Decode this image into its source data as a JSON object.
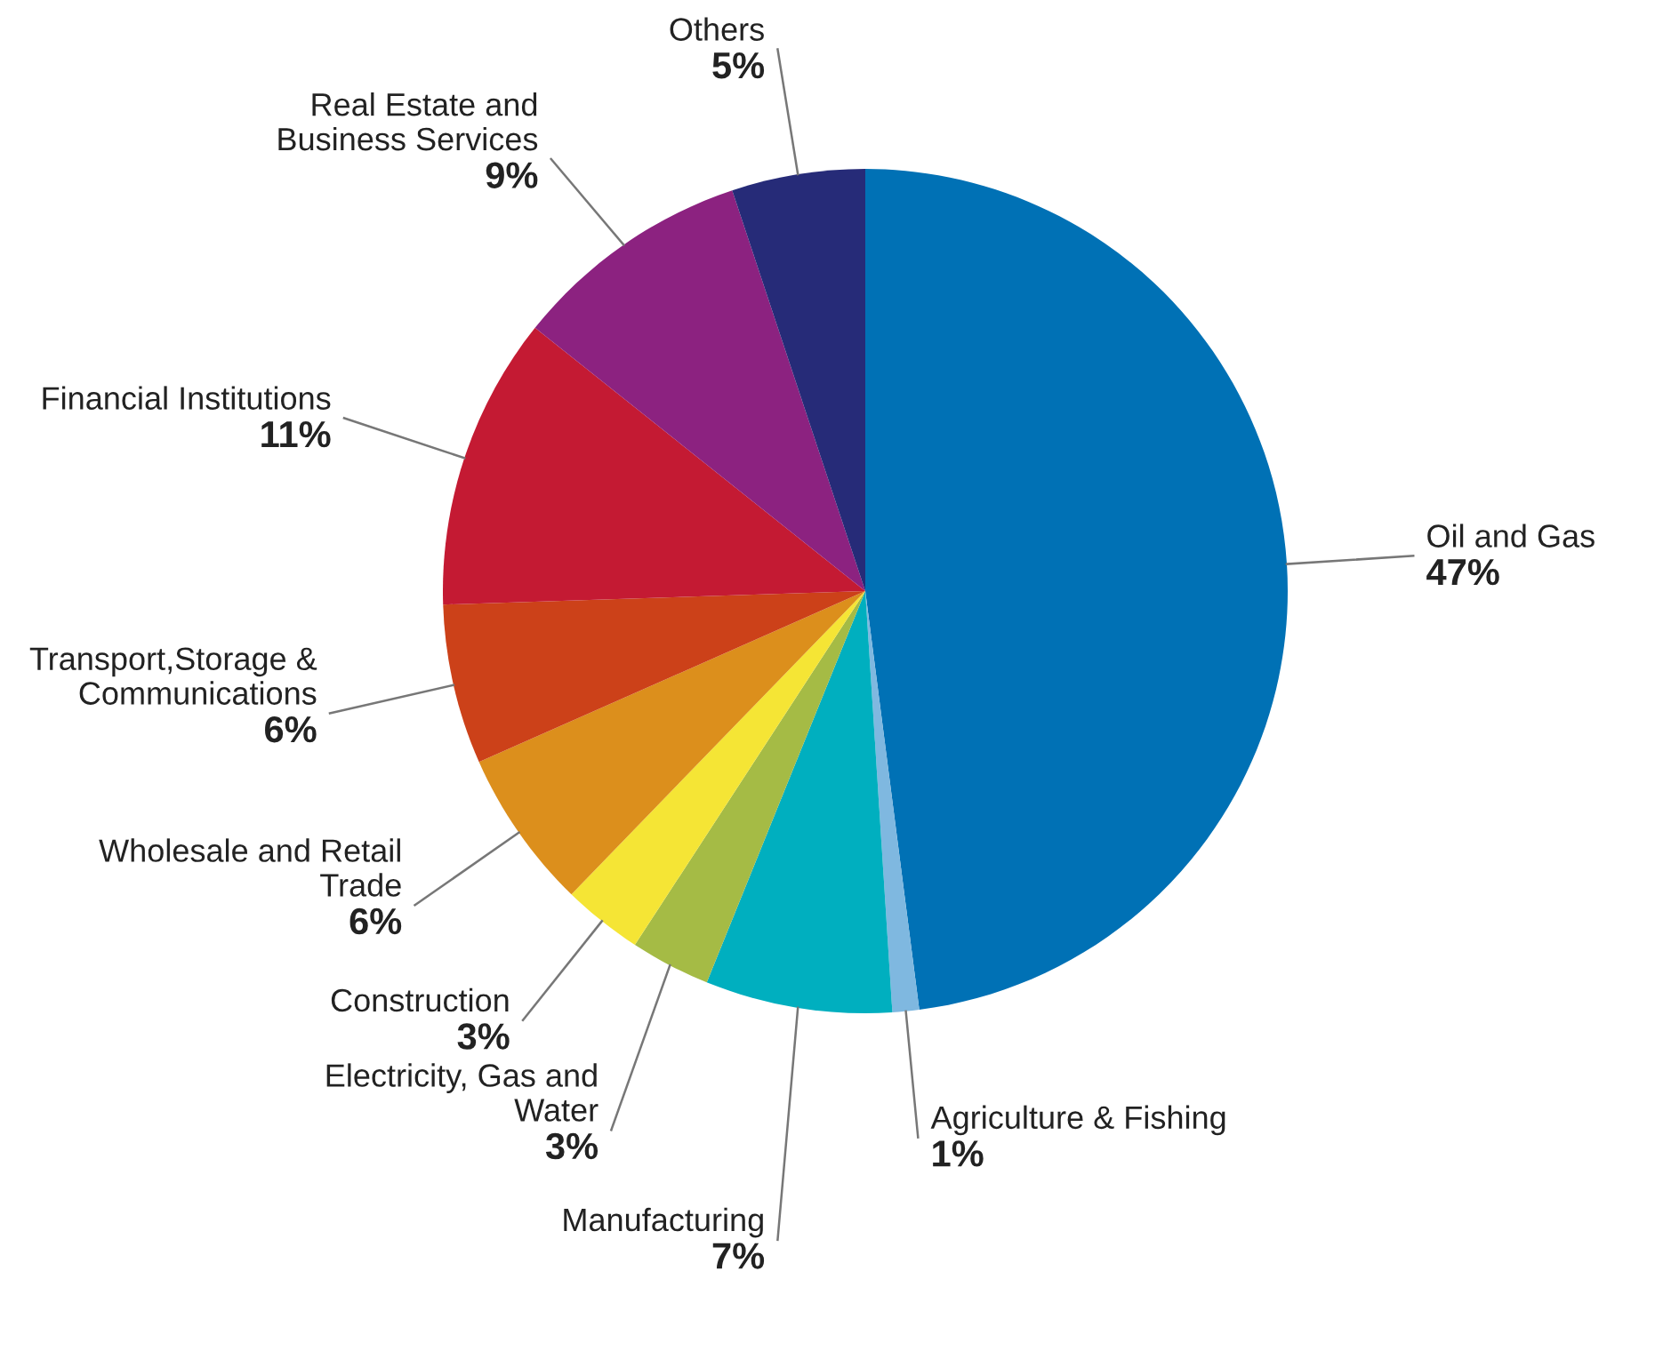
{
  "chart_data": {
    "type": "pie",
    "categories": [
      "Oil and Gas",
      "Agriculture & Fishing",
      "Manufacturing",
      "Electricity, Gas and Water",
      "Construction",
      "Wholesale and Retail Trade",
      "Transport,Storage & Communications",
      "Financial Institutions",
      "Real Estate and Business Services",
      "Others"
    ],
    "values": [
      47,
      1,
      7,
      3,
      3,
      6,
      6,
      11,
      9,
      5
    ],
    "colors": [
      "#0071b5",
      "#7fb8e0",
      "#00afbf",
      "#a5bb45",
      "#f5e535",
      "#dc8f1c",
      "#cc4119",
      "#c41a33",
      "#8c2280",
      "#262b78"
    ],
    "value_labels": [
      "47%",
      "1%",
      "7%",
      "3%",
      "3%",
      "6%",
      "6%",
      "11%",
      "9%",
      "5%"
    ]
  }
}
